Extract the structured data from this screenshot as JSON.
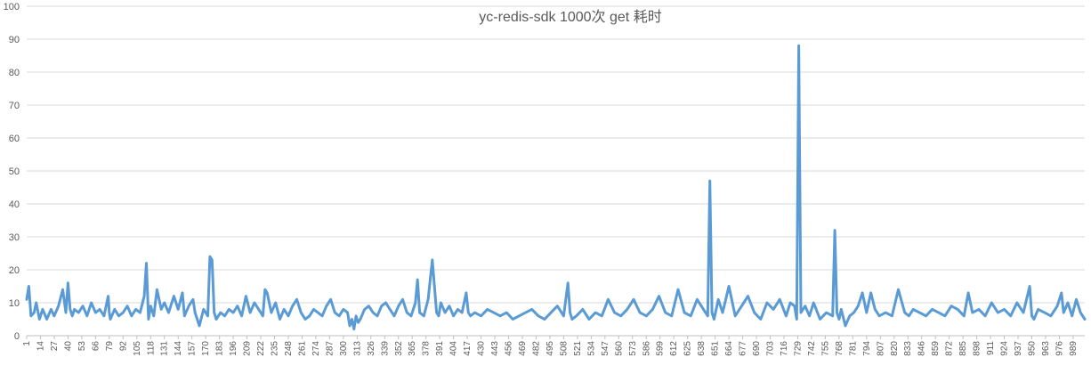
{
  "chart_data": {
    "type": "line",
    "title": "yc-redis-sdk 1000次 get 耗时",
    "xlabel": "",
    "ylabel": "",
    "ylim": [
      0,
      100
    ],
    "yticks": [
      0,
      10,
      20,
      30,
      40,
      50,
      60,
      70,
      80,
      90,
      100
    ],
    "xlim": [
      1,
      1000
    ],
    "xtick_start": 1,
    "xtick_step": 13,
    "grid": true,
    "legend": "none",
    "line_color": "#5b9bd5",
    "x": [
      1,
      3,
      5,
      8,
      10,
      13,
      16,
      20,
      24,
      27,
      31,
      35,
      38,
      40,
      42,
      44,
      46,
      50,
      54,
      58,
      62,
      66,
      70,
      74,
      78,
      79,
      80,
      84,
      88,
      92,
      96,
      100,
      104,
      108,
      112,
      114,
      116,
      118,
      121,
      124,
      128,
      131,
      135,
      140,
      144,
      148,
      150,
      154,
      158,
      160,
      164,
      168,
      172,
      174,
      176,
      178,
      180,
      184,
      188,
      192,
      196,
      200,
      204,
      208,
      212,
      216,
      220,
      224,
      226,
      228,
      232,
      236,
      240,
      244,
      248,
      252,
      256,
      260,
      264,
      268,
      272,
      276,
      280,
      284,
      288,
      292,
      296,
      300,
      304,
      306,
      308,
      310,
      312,
      314,
      316,
      320,
      324,
      328,
      332,
      336,
      340,
      344,
      348,
      352,
      356,
      360,
      364,
      368,
      370,
      372,
      376,
      380,
      384,
      388,
      390,
      392,
      396,
      400,
      404,
      408,
      412,
      416,
      418,
      420,
      424,
      430,
      436,
      442,
      448,
      454,
      460,
      466,
      472,
      478,
      484,
      490,
      496,
      502,
      508,
      512,
      514,
      516,
      520,
      526,
      532,
      538,
      544,
      550,
      556,
      562,
      568,
      574,
      580,
      586,
      592,
      598,
      604,
      610,
      616,
      622,
      628,
      634,
      640,
      644,
      646,
      648,
      650,
      654,
      658,
      664,
      670,
      676,
      682,
      688,
      694,
      700,
      706,
      712,
      718,
      722,
      726,
      728,
      730,
      732,
      736,
      740,
      744,
      750,
      756,
      762,
      764,
      766,
      768,
      770,
      774,
      778,
      782,
      786,
      790,
      794,
      798,
      802,
      806,
      812,
      818,
      824,
      830,
      834,
      838,
      844,
      850,
      856,
      862,
      868,
      874,
      880,
      886,
      890,
      894,
      900,
      906,
      912,
      918,
      924,
      930,
      936,
      942,
      948,
      950,
      952,
      956,
      962,
      968,
      974,
      978,
      980,
      984,
      988,
      992,
      996,
      1000
    ],
    "y": [
      11,
      15,
      6,
      7,
      10,
      5,
      8,
      5,
      8,
      6,
      9,
      14,
      7,
      16,
      8,
      6,
      8,
      7,
      9,
      6,
      10,
      7,
      8,
      6,
      12,
      7,
      5,
      8,
      6,
      7,
      9,
      6,
      8,
      7,
      12,
      22,
      5,
      9,
      6,
      14,
      8,
      10,
      7,
      12,
      8,
      13,
      6,
      9,
      11,
      7,
      3,
      8,
      6,
      24,
      23,
      7,
      5,
      7,
      6,
      8,
      7,
      9,
      6,
      12,
      7,
      10,
      8,
      6,
      14,
      13,
      7,
      10,
      5,
      8,
      6,
      9,
      11,
      7,
      5,
      6,
      8,
      7,
      6,
      9,
      11,
      7,
      6,
      8,
      7,
      3,
      5,
      2,
      6,
      4,
      5,
      8,
      9,
      7,
      6,
      9,
      10,
      8,
      6,
      9,
      11,
      7,
      6,
      10,
      17,
      7,
      6,
      11,
      23,
      7,
      6,
      10,
      7,
      9,
      6,
      8,
      7,
      13,
      7,
      6,
      7,
      6,
      8,
      7,
      6,
      7,
      5,
      6,
      7,
      8,
      6,
      5,
      7,
      9,
      6,
      16,
      7,
      5,
      6,
      8,
      5,
      7,
      6,
      11,
      7,
      6,
      8,
      11,
      7,
      6,
      8,
      12,
      7,
      6,
      14,
      7,
      6,
      11,
      8,
      6,
      47,
      7,
      5,
      11,
      7,
      15,
      6,
      9,
      12,
      7,
      5,
      10,
      8,
      11,
      6,
      10,
      9,
      5,
      88,
      7,
      9,
      6,
      10,
      5,
      7,
      6,
      32,
      7,
      5,
      8,
      3,
      6,
      7,
      9,
      13,
      7,
      13,
      8,
      6,
      7,
      6,
      14,
      7,
      6,
      8,
      7,
      6,
      8,
      7,
      6,
      9,
      8,
      6,
      13,
      7,
      8,
      6,
      10,
      7,
      8,
      6,
      10,
      7,
      15,
      6,
      5,
      8,
      7,
      6,
      9,
      13,
      7,
      10,
      6,
      11,
      7,
      5
    ],
    "xticks": [
      "1",
      "14",
      "27",
      "40",
      "53",
      "66",
      "79",
      "92",
      "105",
      "118",
      "131",
      "144",
      "157",
      "170",
      "183",
      "196",
      "209",
      "222",
      "235",
      "248",
      "261",
      "274",
      "287",
      "300",
      "313",
      "326",
      "339",
      "352",
      "365",
      "378",
      "391",
      "404",
      "417",
      "430",
      "443",
      "456",
      "469",
      "482",
      "495",
      "508",
      "521",
      "534",
      "547",
      "560",
      "573",
      "586",
      "599",
      "612",
      "625",
      "638",
      "651",
      "664",
      "677",
      "690",
      "703",
      "716",
      "729",
      "742",
      "755",
      "768",
      "781",
      "794",
      "807",
      "820",
      "833",
      "846",
      "859",
      "872",
      "885",
      "898",
      "911",
      "924",
      "937",
      "950",
      "963",
      "976",
      "989"
    ]
  }
}
